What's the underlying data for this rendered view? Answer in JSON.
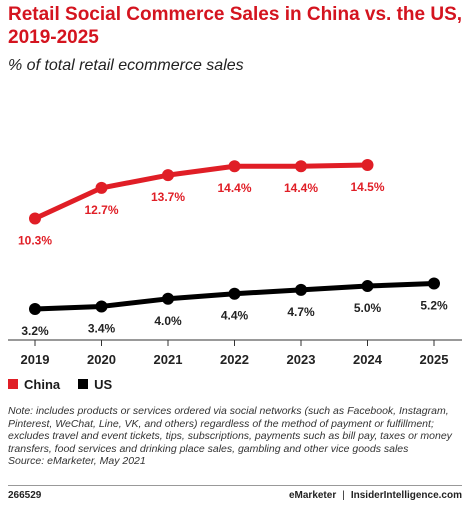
{
  "title": "Retail Social Commerce Sales in China vs. the US, 2019-2025",
  "subtitle": "% of total retail ecommerce sales",
  "chart_data": {
    "type": "line",
    "x": [
      "2019",
      "2020",
      "2021",
      "2022",
      "2023",
      "2024",
      "2025"
    ],
    "series": [
      {
        "name": "China",
        "color": "#e01e26",
        "values": [
          10.3,
          12.7,
          13.7,
          14.4,
          14.4,
          14.5,
          null
        ],
        "labels": [
          "10.3%",
          "12.7%",
          "13.7%",
          "14.4%",
          "14.4%",
          "14.5%",
          null
        ]
      },
      {
        "name": "US",
        "color": "#000000",
        "values": [
          3.2,
          3.4,
          4.0,
          4.4,
          4.7,
          5.0,
          5.2
        ],
        "labels": [
          "3.2%",
          "3.4%",
          "4.0%",
          "4.4%",
          "4.7%",
          "5.0%",
          "5.2%"
        ]
      }
    ],
    "legend_position": "bottom-left",
    "grid": false
  },
  "legend": [
    {
      "label": "China",
      "color": "#e01e26"
    },
    {
      "label": "US",
      "color": "#000000"
    }
  ],
  "note": "Note: includes products or services ordered via social networks (such as Facebook, Instagram, Pinterest, WeChat, Line, VK, and others) regardless of the method of payment or fulfillment; excludes travel and event tickets, tips, subscriptions, payments such as bill pay, taxes or money transfers, food services and drinking place sales, gambling and other vice goods sales",
  "source": "Source: eMarketer, May 2021",
  "footer": {
    "id": "266529",
    "brand_left": "eMarketer",
    "separator": "|",
    "brand_right": "InsiderIntelligence.com"
  }
}
